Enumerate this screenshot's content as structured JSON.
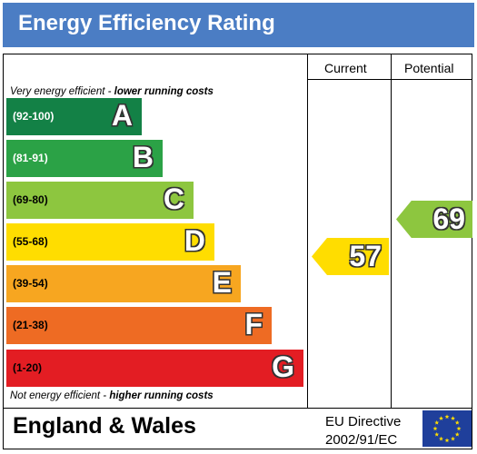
{
  "header": {
    "title": "Energy Efficiency Rating"
  },
  "columns": {
    "current": "Current",
    "potential": "Potential"
  },
  "captions": {
    "top_prefix": "Very energy efficient - ",
    "top_suffix": "lower running costs",
    "bottom_prefix": "Not energy efficient - ",
    "bottom_suffix": "higher running costs"
  },
  "bands": [
    {
      "range": "(92-100)",
      "letter": "A",
      "color": "#138146"
    },
    {
      "range": "(81-91)",
      "letter": "B",
      "color": "#2ba246"
    },
    {
      "range": "(69-80)",
      "letter": "C",
      "color": "#8dc63f"
    },
    {
      "range": "(55-68)",
      "letter": "D",
      "color": "#ffdd00"
    },
    {
      "range": "(39-54)",
      "letter": "E",
      "color": "#f7a620"
    },
    {
      "range": "(21-38)",
      "letter": "F",
      "color": "#ee6b23"
    },
    {
      "range": "(1-20)",
      "letter": "G",
      "color": "#e31d23"
    }
  ],
  "current": {
    "value": "57",
    "band": "D",
    "color": "#ffdd00"
  },
  "potential": {
    "value": "69",
    "band": "C",
    "color": "#8dc63f"
  },
  "footer": {
    "region": "England & Wales",
    "directive_line1": "EU Directive",
    "directive_line2": "2002/91/EC",
    "flag_icon": "eu-flag-icon"
  }
}
